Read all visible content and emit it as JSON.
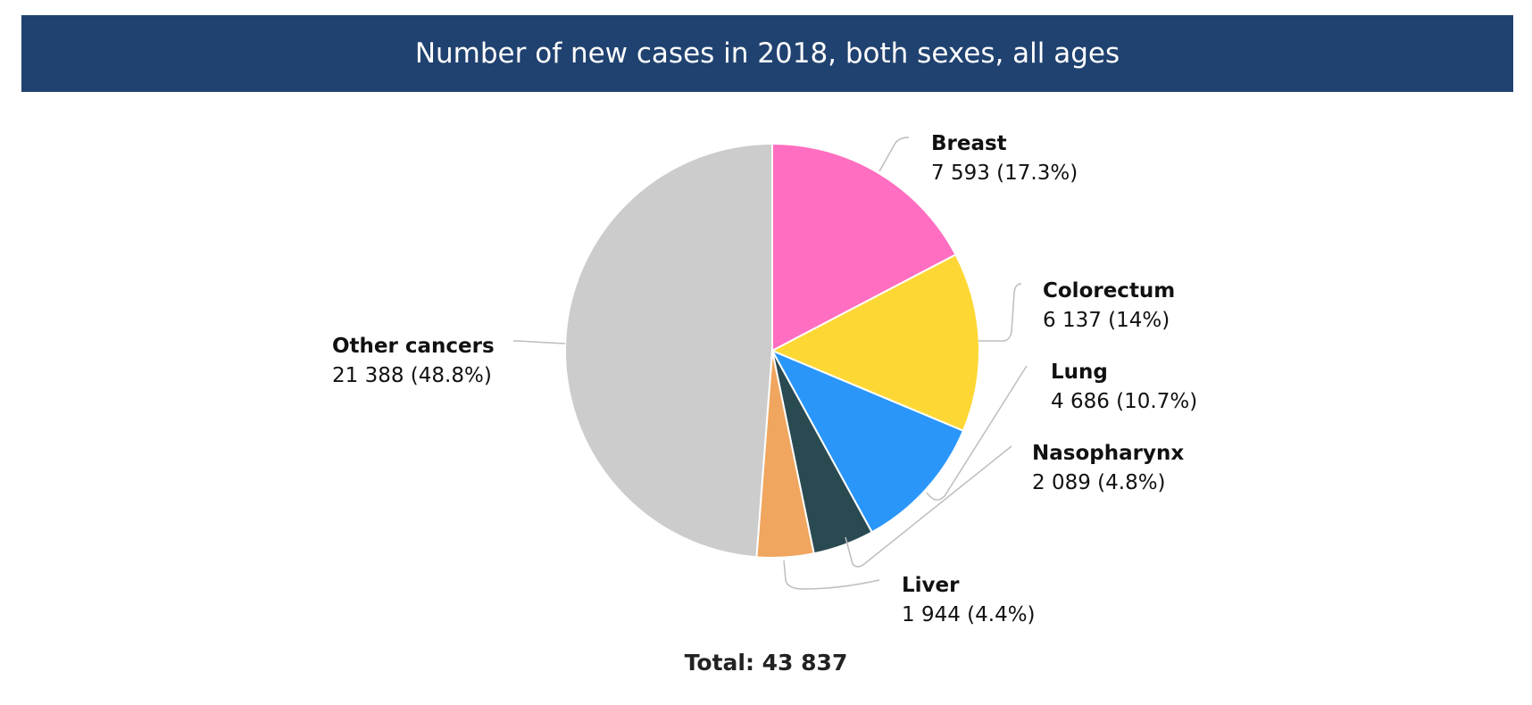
{
  "title": "Number of new cases in 2018, both sexes, all ages",
  "total_text": "Total: 43 837",
  "chart_data": {
    "type": "pie",
    "title": "Number of new cases in 2018, both sexes, all ages",
    "total": 43837,
    "slices": [
      {
        "name": "Breast",
        "value": 7593,
        "label": "7 593 (17.3%)",
        "color": "#FF6EC0"
      },
      {
        "name": "Colorectum",
        "value": 6137,
        "label": "6 137 (14%)",
        "color": "#FDD835"
      },
      {
        "name": "Lung",
        "value": 4686,
        "label": "4 686 (10.7%)",
        "color": "#2A96FA"
      },
      {
        "name": "Nasopharynx",
        "value": 2089,
        "label": "2 089 (4.8%)",
        "color": "#2A4A52"
      },
      {
        "name": "Liver",
        "value": 1944,
        "label": "1 944 (4.4%)",
        "color": "#F0A65E"
      },
      {
        "name": "Other cancers",
        "value": 21388,
        "label": "21 388 (48.8%)",
        "color": "#CCCCCC"
      }
    ]
  }
}
